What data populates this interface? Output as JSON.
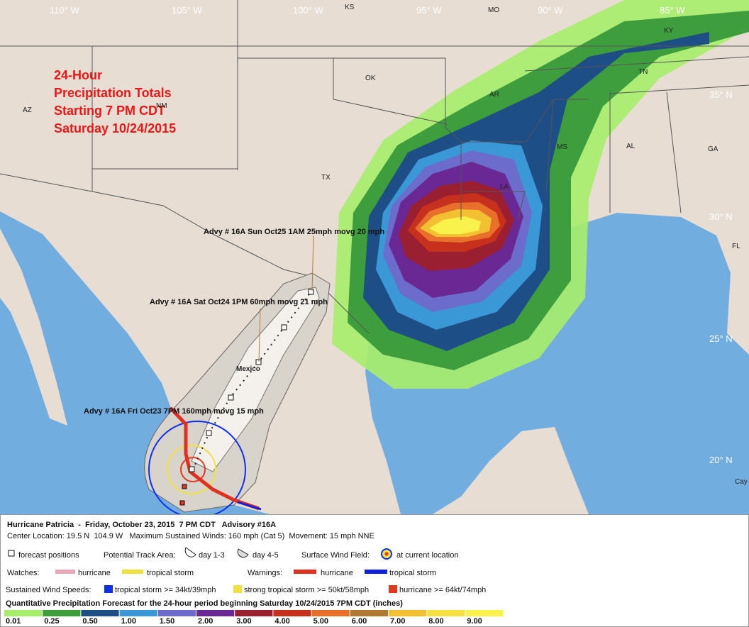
{
  "map": {
    "title_lines": [
      "24-Hour",
      "Precipitation Totals",
      "Starting 7 PM CDT",
      "Saturday 10/24/2015"
    ],
    "longitude_labels": [
      "110° W",
      "105° W",
      "100° W",
      "95° W",
      "90° W",
      "85° W"
    ],
    "latitude_labels": [
      "35° N",
      "30° N",
      "25° N",
      "20° N"
    ],
    "region_labels": [
      "KS",
      "MO",
      "KY",
      "OK",
      "AR",
      "TN",
      "AZ",
      "NM",
      "TX",
      "LA",
      "MS",
      "AL",
      "GA",
      "FL",
      "Cay"
    ],
    "country_label": "Mexico",
    "advisories": [
      "Advy # 16A Sun Oct25 1AM 25mph movg 20 mph",
      "Advy # 16A Sat Oct24 1PM 60mph movg 21 mph",
      "Advy # 16A Fri Oct23 7PM 160mph movg 15 mph"
    ]
  },
  "legend": {
    "title": "Hurricane Patricia  -  Friday, October 23, 2015  7 PM CDT   Advisory #16A",
    "details": "Center Location: 19.5 N  104.9 W   Maximum Sustained Winds: 160 mph (Cat 5)  Movement: 15 mph NNE",
    "forecast_positions": "forecast positions",
    "track_area": {
      "label": "Potential Track Area:",
      "day_1_3": "day 1-3",
      "day_4_5": "day 4-5"
    },
    "wind_field": {
      "label": "Surface Wind Field:",
      "text": "at current location"
    },
    "watches": {
      "label": "Watches:",
      "hurricane": "hurricane",
      "tropical_storm": "tropical storm"
    },
    "warnings": {
      "label": "Warnings:",
      "hurricane": "hurricane",
      "tropical_storm": "tropical storm"
    },
    "wind_speeds": {
      "label": "Sustained Wind Speeds:",
      "items": [
        {
          "text": "tropical storm >= 34kt/39mph",
          "color": "#1030e8"
        },
        {
          "text": "strong tropical storm >= 50kt/58mph",
          "color": "#f0e040"
        },
        {
          "text": "hurricane >= 64kt/74mph",
          "color": "#e03a20"
        }
      ]
    },
    "precipitation": {
      "title": "Quantitative Precipitation Forecast for the 24-hour period beginning Saturday 10/24/2015 7PM CDT (inches)",
      "scale": [
        {
          "label": "0.01",
          "color": "#a6ee6a"
        },
        {
          "label": "0.25",
          "color": "#3e9e3e"
        },
        {
          "label": "0.50",
          "color": "#1d4f86"
        },
        {
          "label": "1.00",
          "color": "#3a98d6"
        },
        {
          "label": "1.50",
          "color": "#6c6ccc"
        },
        {
          "label": "2.00",
          "color": "#6a2894"
        },
        {
          "label": "3.00",
          "color": "#9a1f30"
        },
        {
          "label": "4.00",
          "color": "#c8301e"
        },
        {
          "label": "5.00",
          "color": "#e8702a"
        },
        {
          "label": "6.00",
          "color": "#b07a34"
        },
        {
          "label": "7.00",
          "color": "#f2c030"
        },
        {
          "label": "8.00",
          "color": "#f4e040"
        },
        {
          "label": "9.00",
          "color": "#faf24c"
        }
      ]
    }
  }
}
